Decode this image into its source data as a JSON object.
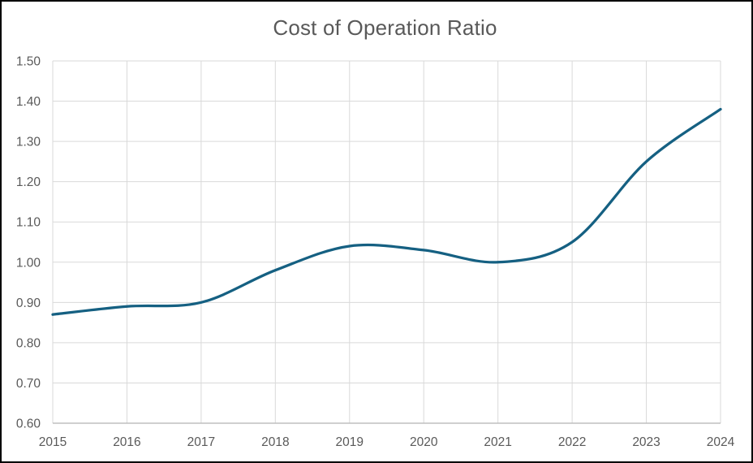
{
  "chart_data": {
    "type": "line",
    "title": "Cost of Operation Ratio",
    "categories": [
      "2015",
      "2016",
      "2017",
      "2018",
      "2019",
      "2020",
      "2021",
      "2022",
      "2023",
      "2024"
    ],
    "series": [
      {
        "name": "Cost of Operation Ratio",
        "values": [
          0.87,
          0.89,
          0.9,
          0.98,
          1.04,
          1.03,
          1.0,
          1.05,
          1.25,
          1.38
        ]
      }
    ],
    "xlabel": "",
    "ylabel": "",
    "ylim": [
      0.6,
      1.5
    ],
    "ytick_step": 0.1,
    "ytick_labels": [
      "0.60",
      "0.70",
      "0.80",
      "0.90",
      "1.00",
      "1.10",
      "1.20",
      "1.30",
      "1.40",
      "1.50"
    ],
    "grid": true,
    "smooth": true,
    "legend_position": "none",
    "colors": {
      "line": "#156082",
      "grid": "#D9D9D9",
      "axis_line": "#BFBFBF",
      "tick_text": "#595959",
      "title_text": "#595959",
      "background": "#FFFFFF",
      "frame_border": "#000000"
    }
  }
}
